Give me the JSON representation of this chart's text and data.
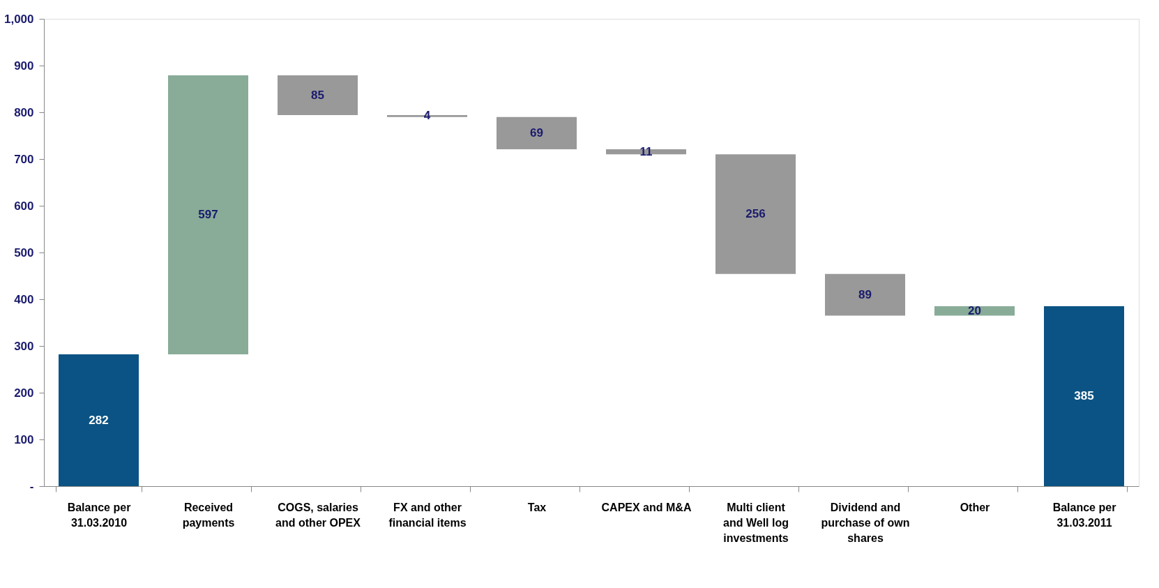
{
  "chart_data": {
    "type": "bar",
    "categories": [
      "Balance per 31.03.2010",
      "Received payments",
      "COGS, salaries and other OPEX",
      "FX and other financial items",
      "Tax",
      "CAPEX and M&A",
      "Multi client and Well log investments",
      "Dividend and purchase of own shares",
      "Other",
      "Balance per 31.03.2011"
    ],
    "values": [
      282,
      597,
      85,
      4,
      69,
      11,
      256,
      89,
      20,
      385
    ],
    "base": [
      0,
      282,
      794,
      790,
      721,
      710,
      454,
      365,
      365,
      0
    ],
    "colors": [
      "#0b5384",
      "#88ac98",
      "#999999",
      "#999999",
      "#999999",
      "#999999",
      "#999999",
      "#999999",
      "#88ac98",
      "#0b5384"
    ],
    "ylim": [
      0,
      1000
    ],
    "yticks": [
      {
        "value": 0,
        "label": "-"
      },
      100,
      200,
      300,
      400,
      500,
      600,
      700,
      800,
      900,
      {
        "value": 1000,
        "label": "1,000"
      }
    ],
    "data_labels": true,
    "grid": false
  }
}
